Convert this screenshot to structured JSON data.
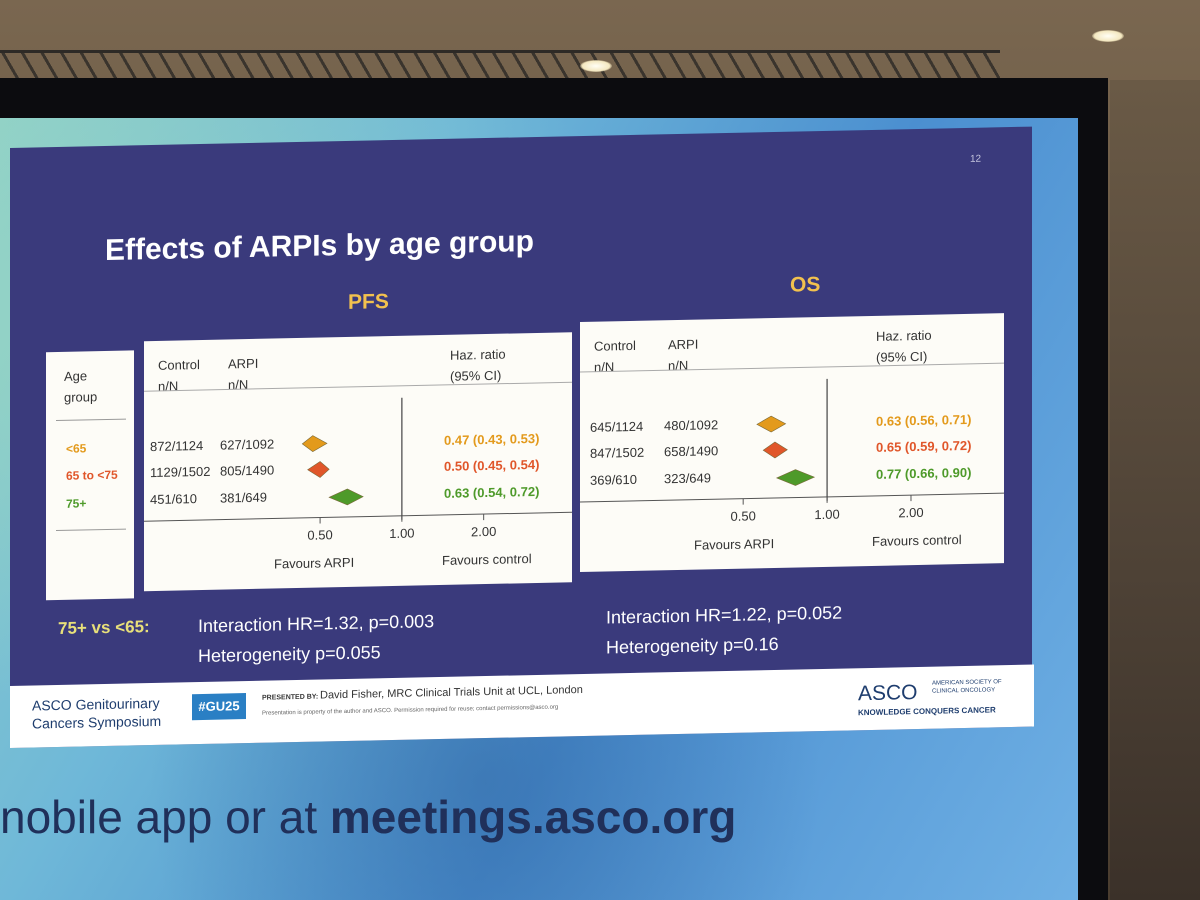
{
  "slide": {
    "number": "12",
    "title": "Effects of ARPIs by age group"
  },
  "panels": {
    "pfs_title": "PFS",
    "os_title": "OS"
  },
  "headers": {
    "age": "Age",
    "group": "group",
    "control": "Control",
    "arpi": "ARPI",
    "nN": "n/N",
    "hr": "Haz. ratio",
    "ci": "(95% CI)"
  },
  "age_groups": [
    {
      "label": "<65",
      "color": "#e39a1c"
    },
    {
      "label": "65 to <75",
      "color": "#e0562a"
    },
    {
      "label": "75+",
      "color": "#4e9a2a"
    }
  ],
  "pfs_rows": [
    {
      "control": "872/1124",
      "arpi": "627/1092",
      "hr_text": "0.47 (0.43, 0.53)"
    },
    {
      "control": "1129/1502",
      "arpi": "805/1490",
      "hr_text": "0.50 (0.45, 0.54)"
    },
    {
      "control": "451/610",
      "arpi": "381/649",
      "hr_text": "0.63 (0.54, 0.72)"
    }
  ],
  "os_rows": [
    {
      "control": "645/1124",
      "arpi": "480/1092",
      "hr_text": "0.63 (0.56, 0.71)"
    },
    {
      "control": "847/1502",
      "arpi": "658/1490",
      "hr_text": "0.65 (0.59, 0.72)"
    },
    {
      "control": "369/610",
      "arpi": "323/649",
      "hr_text": "0.77 (0.66, 0.90)"
    }
  ],
  "axis": {
    "ticks": [
      "0.50",
      "1.00",
      "2.00"
    ],
    "favours_arpi": "Favours ARPI",
    "favours_control": "Favours control"
  },
  "interaction": {
    "comparison": "75+ vs <65:",
    "pfs_interaction": "Interaction HR=1.32, p=0.003",
    "pfs_heterogeneity": "Heterogeneity p=0.055",
    "os_interaction": "Interaction HR=1.22, p=0.052",
    "os_heterogeneity": "Heterogeneity p=0.16"
  },
  "footer": {
    "asco_gu_1": "ASCO Genitourinary",
    "asco_gu_2": "Cancers Symposium",
    "hashtag": "#GU25",
    "presented_by": "PRESENTED BY:",
    "presenter": "David Fisher, MRC Clinical Trials Unit at UCL, London",
    "disclaimer": "Presentation is property of the author and ASCO. Permission required for reuse; contact permissions@asco.org",
    "asco_logo": "ASCO",
    "asco_society_1": "AMERICAN SOCIETY OF",
    "asco_society_2": "CLINICAL ONCOLOGY",
    "tagline": "KNOWLEDGE CONQUERS CANCER"
  },
  "bottom_banner": {
    "prefix": "nobile app or at ",
    "url": "meetings.asco.org"
  },
  "chart_data": [
    {
      "type": "forest",
      "title": "PFS",
      "xscale": "log",
      "xlim": [
        0.35,
        2.5
      ],
      "reference": 1.0,
      "x_ticks": [
        0.5,
        1.0,
        2.0
      ],
      "xlabel_left": "Favours ARPI",
      "xlabel_right": "Favours control",
      "categories": [
        "<65",
        "65 to <75",
        "75+"
      ],
      "hr": [
        0.47,
        0.5,
        0.63
      ],
      "ci_low": [
        0.43,
        0.45,
        0.54
      ],
      "ci_high": [
        0.53,
        0.54,
        0.72
      ]
    },
    {
      "type": "forest",
      "title": "OS",
      "xscale": "log",
      "xlim": [
        0.35,
        2.5
      ],
      "reference": 1.0,
      "x_ticks": [
        0.5,
        1.0,
        2.0
      ],
      "xlabel_left": "Favours ARPI",
      "xlabel_right": "Favours control",
      "categories": [
        "<65",
        "65 to <75",
        "75+"
      ],
      "hr": [
        0.63,
        0.65,
        0.77
      ],
      "ci_low": [
        0.56,
        0.59,
        0.66
      ],
      "ci_high": [
        0.71,
        0.72,
        0.9
      ]
    }
  ]
}
